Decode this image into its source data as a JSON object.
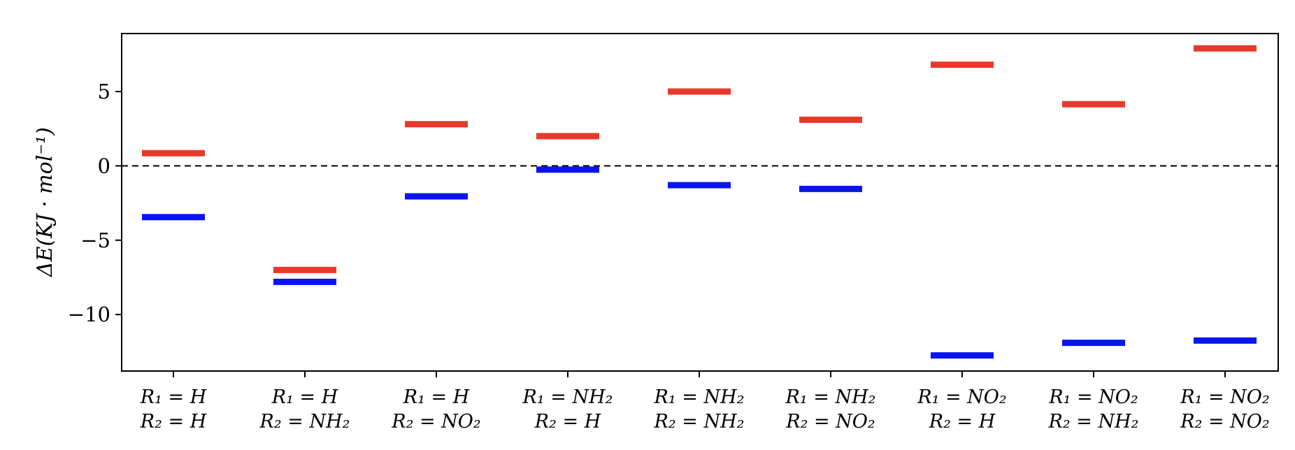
{
  "chart_data": {
    "type": "scatter",
    "marker": "horizontal-bar",
    "title": "",
    "xlabel": "",
    "ylabel": "ΔE(KJ · mol⁻¹)",
    "ylim": [
      -13.8,
      8.9
    ],
    "yticks": [
      5,
      0,
      -5,
      -10
    ],
    "ytick_labels": [
      "5",
      "0",
      "−5",
      "−10"
    ],
    "reference_line": {
      "y": 0,
      "style": "dashed",
      "color": "#000000"
    },
    "categories": [
      {
        "line1": "R₁ = H",
        "line2": "R₂ = H"
      },
      {
        "line1": "R₁ = H",
        "line2": "R₂ = NH₂"
      },
      {
        "line1": "R₁ = H",
        "line2": "R₂ = NO₂"
      },
      {
        "line1": "R₁ = NH₂",
        "line2": "R₂ = H"
      },
      {
        "line1": "R₁ = NH₂",
        "line2": "R₂ = NH₂"
      },
      {
        "line1": "R₁ = NH₂",
        "line2": "R₂ = NO₂"
      },
      {
        "line1": "R₁ = NO₂",
        "line2": "R₂ = H"
      },
      {
        "line1": "R₁ = NO₂",
        "line2": "R₂ = NH₂"
      },
      {
        "line1": "R₁ = NO₂",
        "line2": "R₂ = NO₂"
      }
    ],
    "series": [
      {
        "color": "#e8392b",
        "values": [
          0.85,
          -7.0,
          2.8,
          2.0,
          5.0,
          3.1,
          6.8,
          4.15,
          7.9
        ]
      },
      {
        "color": "#0a14f0",
        "values": [
          -3.45,
          -7.8,
          -2.05,
          -0.25,
          -1.3,
          -1.55,
          -12.75,
          -11.9,
          -11.75
        ]
      }
    ],
    "grid": false,
    "legend": "none"
  }
}
